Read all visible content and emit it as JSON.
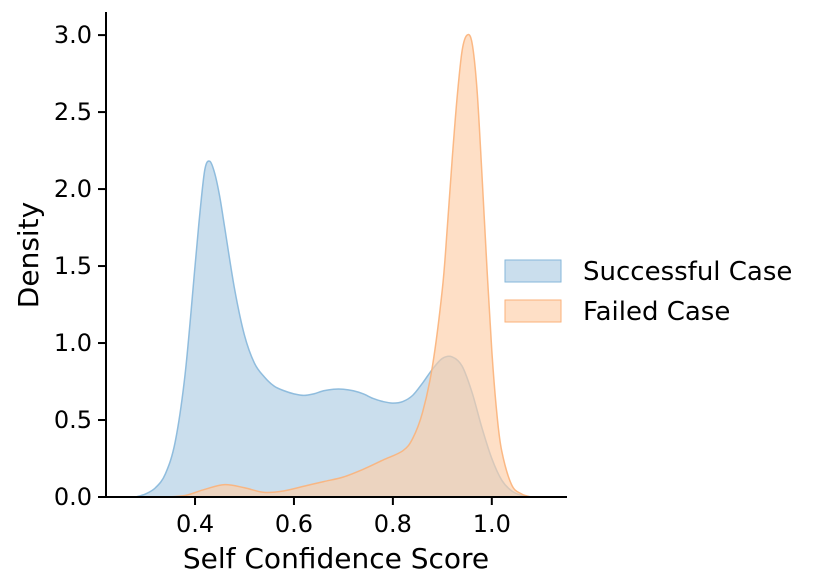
{
  "chart_data": {
    "type": "area",
    "subtype": "kde-density",
    "xlabel": "Self Confidence Score",
    "ylabel": "Density",
    "xlim": [
      0.22,
      1.15
    ],
    "ylim": [
      0,
      3.15
    ],
    "xticks": [
      0.4,
      0.6,
      0.8,
      1.0
    ],
    "xtick_labels": [
      "0.4",
      "0.6",
      "0.8",
      "1.0"
    ],
    "yticks": [
      0.0,
      0.5,
      1.0,
      1.5,
      2.0,
      2.5,
      3.0
    ],
    "ytick_labels": [
      "0.0",
      "0.5",
      "1.0",
      "1.5",
      "2.0",
      "2.5",
      "3.0"
    ],
    "grid": false,
    "legend_position": "center-right outside",
    "series": [
      {
        "name": "Successful Case",
        "color": "#aecde4",
        "edge_color": "#86b7da",
        "x": [
          0.28,
          0.3,
          0.32,
          0.34,
          0.36,
          0.38,
          0.4,
          0.41,
          0.42,
          0.43,
          0.44,
          0.45,
          0.46,
          0.48,
          0.5,
          0.52,
          0.54,
          0.56,
          0.58,
          0.6,
          0.62,
          0.64,
          0.66,
          0.68,
          0.7,
          0.72,
          0.74,
          0.76,
          0.78,
          0.8,
          0.82,
          0.84,
          0.86,
          0.88,
          0.9,
          0.92,
          0.94,
          0.96,
          0.98,
          1.0,
          1.02,
          1.04,
          1.06,
          1.08
        ],
        "y": [
          0.0,
          0.02,
          0.06,
          0.15,
          0.36,
          0.8,
          1.5,
          1.85,
          2.13,
          2.18,
          2.1,
          1.95,
          1.75,
          1.35,
          1.05,
          0.87,
          0.78,
          0.72,
          0.69,
          0.67,
          0.66,
          0.67,
          0.69,
          0.7,
          0.7,
          0.69,
          0.67,
          0.64,
          0.62,
          0.61,
          0.62,
          0.66,
          0.74,
          0.83,
          0.9,
          0.91,
          0.85,
          0.68,
          0.45,
          0.25,
          0.11,
          0.04,
          0.01,
          0.0
        ]
      },
      {
        "name": "Failed Case",
        "color": "#fdcea8",
        "edge_color": "#fbb27a",
        "x": [
          0.34,
          0.38,
          0.42,
          0.46,
          0.5,
          0.54,
          0.58,
          0.62,
          0.66,
          0.7,
          0.74,
          0.78,
          0.82,
          0.84,
          0.86,
          0.88,
          0.9,
          0.91,
          0.92,
          0.93,
          0.94,
          0.95,
          0.96,
          0.97,
          0.98,
          0.99,
          1.0,
          1.01,
          1.02,
          1.04,
          1.06,
          1.08
        ],
        "y": [
          0.0,
          0.01,
          0.05,
          0.08,
          0.06,
          0.03,
          0.04,
          0.07,
          0.1,
          0.13,
          0.18,
          0.24,
          0.3,
          0.38,
          0.55,
          0.85,
          1.35,
          1.75,
          2.2,
          2.6,
          2.9,
          3.0,
          2.95,
          2.65,
          2.1,
          1.5,
          0.95,
          0.55,
          0.3,
          0.08,
          0.02,
          0.0
        ]
      }
    ]
  }
}
